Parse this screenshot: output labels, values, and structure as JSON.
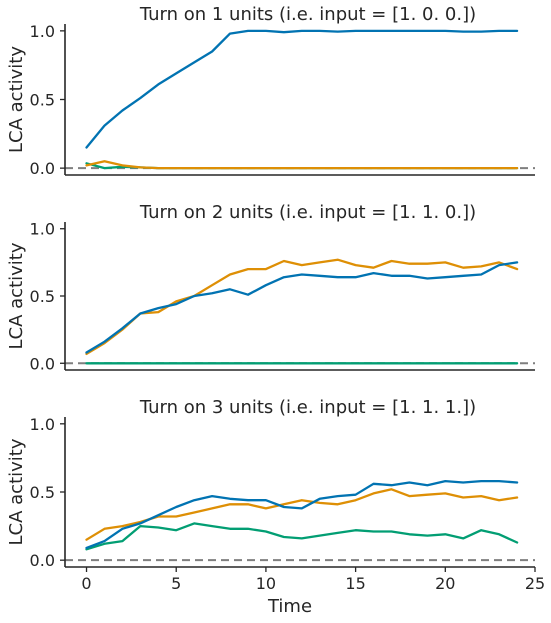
{
  "chart_data": [
    {
      "type": "line",
      "title": "Turn on 1 units (i.e. input = [1. 0. 0.])",
      "ylabel": "LCA activity",
      "xlabel": "",
      "xlim": [
        -1.2,
        25
      ],
      "ylim": [
        -0.05,
        1.05
      ],
      "yticks": [
        "0.0",
        "0.5",
        "1.0"
      ],
      "xticks": [],
      "zero_line": true,
      "x": [
        0,
        1,
        2,
        3,
        4,
        5,
        6,
        7,
        8,
        9,
        10,
        11,
        12,
        13,
        14,
        15,
        16,
        17,
        18,
        19,
        20,
        21,
        22,
        23,
        24
      ],
      "series": [
        {
          "color": "#0173b2",
          "values": [
            0.15,
            0.31,
            0.42,
            0.51,
            0.61,
            0.69,
            0.77,
            0.85,
            0.98,
            1.0,
            1.0,
            0.99,
            1.0,
            1.0,
            0.995,
            1.0,
            1.0,
            1.0,
            1.0,
            1.0,
            1.0,
            0.995,
            0.995,
            1.0,
            1.0
          ]
        },
        {
          "color": "#de8f05",
          "values": [
            0.02,
            0.05,
            0.02,
            0.005,
            0,
            0,
            0,
            0,
            0,
            0,
            0,
            0,
            0,
            0,
            0,
            0,
            0,
            0,
            0,
            0,
            0,
            0,
            0,
            0,
            0
          ]
        },
        {
          "color": "#029e73",
          "values": [
            0.035,
            0.0,
            0.01,
            0.005,
            0,
            0,
            0,
            0,
            0,
            0,
            0,
            0,
            0,
            0,
            0,
            0,
            0,
            0,
            0,
            0,
            0,
            0,
            0,
            0,
            0
          ]
        }
      ]
    },
    {
      "type": "line",
      "title": "Turn on 2 units (i.e. input = [1. 1. 0.])",
      "ylabel": "LCA activity",
      "xlabel": "",
      "xlim": [
        -1.2,
        25
      ],
      "ylim": [
        -0.05,
        1.05
      ],
      "yticks": [
        "0.0",
        "0.5",
        "1.0"
      ],
      "xticks": [],
      "zero_line": true,
      "x": [
        0,
        1,
        2,
        3,
        4,
        5,
        6,
        7,
        8,
        9,
        10,
        11,
        12,
        13,
        14,
        15,
        16,
        17,
        18,
        19,
        20,
        21,
        22,
        23,
        24
      ],
      "series": [
        {
          "color": "#0173b2",
          "values": [
            0.08,
            0.16,
            0.26,
            0.37,
            0.41,
            0.44,
            0.5,
            0.52,
            0.55,
            0.51,
            0.58,
            0.64,
            0.66,
            0.65,
            0.64,
            0.64,
            0.67,
            0.65,
            0.65,
            0.63,
            0.64,
            0.65,
            0.66,
            0.73,
            0.75
          ]
        },
        {
          "color": "#de8f05",
          "values": [
            0.07,
            0.15,
            0.25,
            0.37,
            0.38,
            0.46,
            0.5,
            0.58,
            0.66,
            0.7,
            0.7,
            0.76,
            0.73,
            0.75,
            0.77,
            0.73,
            0.71,
            0.76,
            0.74,
            0.74,
            0.75,
            0.71,
            0.72,
            0.75,
            0.7
          ]
        },
        {
          "color": "#029e73",
          "values": [
            0,
            0,
            0,
            0,
            0,
            0,
            0,
            0,
            0,
            0,
            0,
            0,
            0,
            0,
            0,
            0,
            0,
            0,
            0,
            0,
            0,
            0,
            0,
            0,
            0
          ]
        }
      ]
    },
    {
      "type": "line",
      "title": "Turn on 3 units (i.e. input = [1. 1. 1.])",
      "ylabel": "LCA activity",
      "xlabel": "Time",
      "xlim": [
        -1.2,
        25
      ],
      "ylim": [
        -0.05,
        1.05
      ],
      "yticks": [
        "0.0",
        "0.5",
        "1.0"
      ],
      "xticks": [
        "0",
        "5",
        "10",
        "15",
        "20",
        "25"
      ],
      "zero_line": true,
      "x": [
        0,
        1,
        2,
        3,
        4,
        5,
        6,
        7,
        8,
        9,
        10,
        11,
        12,
        13,
        14,
        15,
        16,
        17,
        18,
        19,
        20,
        21,
        22,
        23,
        24
      ],
      "series": [
        {
          "color": "#0173b2",
          "values": [
            0.09,
            0.14,
            0.23,
            0.27,
            0.33,
            0.39,
            0.44,
            0.47,
            0.45,
            0.44,
            0.44,
            0.39,
            0.38,
            0.45,
            0.47,
            0.48,
            0.56,
            0.55,
            0.57,
            0.55,
            0.58,
            0.57,
            0.58,
            0.58,
            0.57
          ]
        },
        {
          "color": "#de8f05",
          "values": [
            0.15,
            0.23,
            0.25,
            0.28,
            0.32,
            0.32,
            0.35,
            0.38,
            0.41,
            0.41,
            0.38,
            0.41,
            0.44,
            0.42,
            0.41,
            0.44,
            0.49,
            0.52,
            0.47,
            0.48,
            0.49,
            0.46,
            0.47,
            0.44,
            0.46
          ]
        },
        {
          "color": "#029e73",
          "values": [
            0.08,
            0.12,
            0.14,
            0.25,
            0.24,
            0.22,
            0.27,
            0.25,
            0.23,
            0.23,
            0.21,
            0.17,
            0.16,
            0.18,
            0.2,
            0.22,
            0.21,
            0.21,
            0.19,
            0.18,
            0.19,
            0.16,
            0.22,
            0.19,
            0.13
          ]
        }
      ]
    }
  ]
}
